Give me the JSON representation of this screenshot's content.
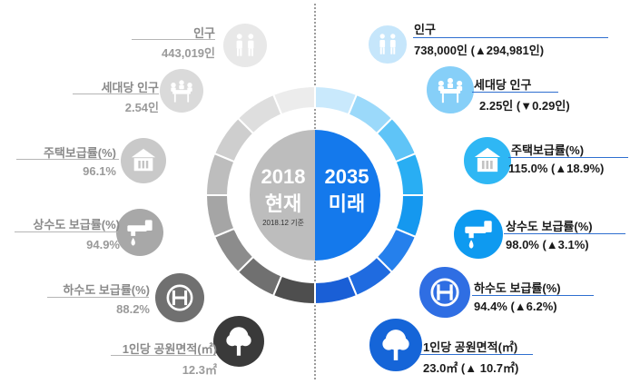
{
  "center": {
    "left_year": "2018",
    "left_label": "현재",
    "left_sub": "2018.12 기준",
    "right_year": "2035",
    "right_label": "미래"
  },
  "left_items": [
    {
      "name": "인구",
      "value": "443,019인",
      "icon": "people-icon"
    },
    {
      "name": "세대당 인구",
      "value": "2.54인",
      "icon": "household-icon"
    },
    {
      "name": "주택보급률(%)",
      "value": "96.1%",
      "icon": "house-icon"
    },
    {
      "name": "상수도 보급률(%)",
      "value": "94.9%",
      "icon": "water-tap-icon"
    },
    {
      "name": "하수도 보급률(%)",
      "value": "88.2%",
      "icon": "sewer-icon"
    },
    {
      "name": "1인당 공원면적(㎡)",
      "value": "12.3㎡",
      "icon": "tree-icon"
    }
  ],
  "right_items": [
    {
      "name": "인구",
      "value": "738,000인 (▲294,981인)",
      "icon": "people-icon"
    },
    {
      "name": "세대당 인구",
      "value": "2.25인 (▼0.29인)",
      "icon": "household-icon"
    },
    {
      "name": "주택보급률(%)",
      "value": "115.0% (▲18.9%)",
      "icon": "house-icon"
    },
    {
      "name": "상수도 보급률(%)",
      "value": "98.0% (▲3.1%)",
      "icon": "water-tap-icon"
    },
    {
      "name": "하수도 보급률(%)",
      "value": "94.4% (▲6.2%)",
      "icon": "sewer-icon"
    },
    {
      "name": "1인당 공원면적(㎡)",
      "value": "23.0㎡ (▲ 10.7㎡)",
      "icon": "tree-icon"
    }
  ],
  "colors": {
    "left_icons": [
      "#e8e8e8",
      "#dadada",
      "#c9c9c9",
      "#a8a8a8",
      "#707070",
      "#3a3a3a"
    ],
    "right_icons": [
      "#c6e6fb",
      "#86cff8",
      "#2fb7f4",
      "#0e9af0",
      "#2f6ee3",
      "#1565d8"
    ],
    "left_ring": [
      "#ececec",
      "#dedede",
      "#cecece",
      "#bdbdbd",
      "#a5a5a5",
      "#8c8c8c",
      "#707070",
      "#4e4e4e"
    ],
    "right_ring": [
      "#c9e9fc",
      "#9bd9fa",
      "#5fc4f7",
      "#29aef3",
      "#1598ef",
      "#2580ec",
      "#1f6be0",
      "#1a5fd6"
    ],
    "center_left": "#bdbdbd",
    "center_right": "#1479ec"
  }
}
